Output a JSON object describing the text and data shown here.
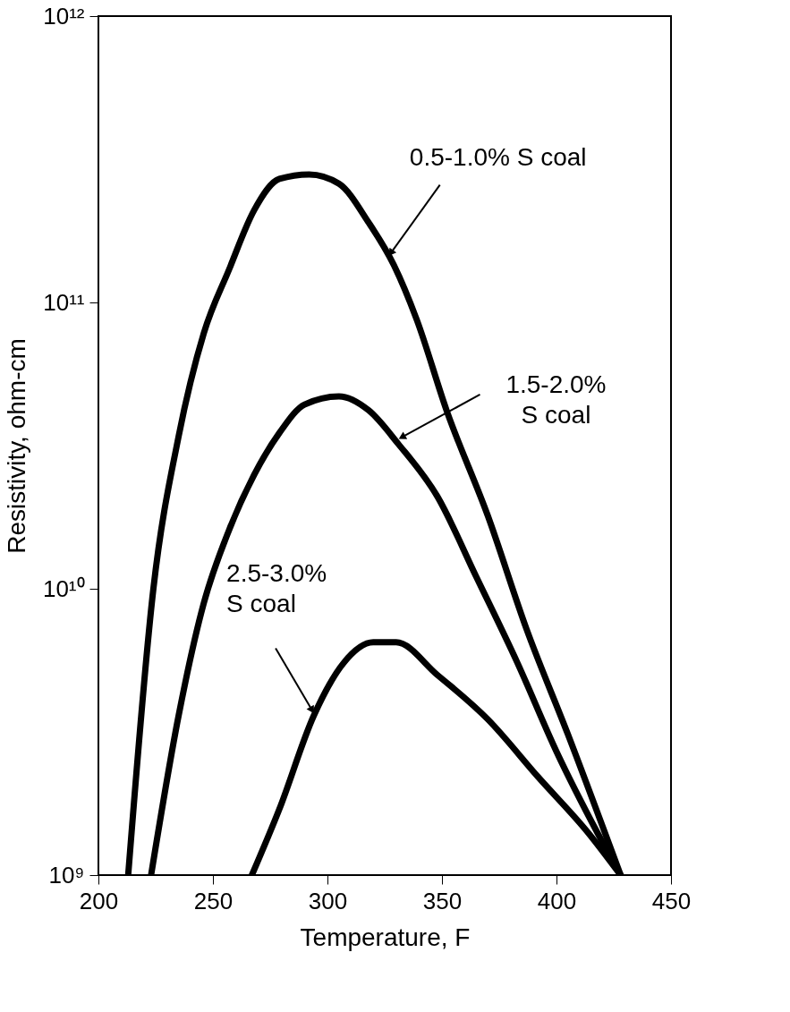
{
  "chart_data": {
    "type": "line",
    "xlabel": "Temperature, F",
    "ylabel": "Resistivity, ohm-cm",
    "log": "y",
    "grid": false,
    "marker": "none",
    "line_style": "solid",
    "xlim": [
      200,
      450
    ],
    "xticks": [
      200,
      250,
      300,
      350,
      400,
      450
    ],
    "ylim": [
      1000000000,
      1000000000000
    ],
    "yticks": [
      {
        "value": 1000000000,
        "label": "10⁹"
      },
      {
        "value": 10000000000,
        "label": "10¹⁰"
      },
      {
        "value": 100000000000,
        "label": "10¹¹"
      },
      {
        "value": 1000000000000,
        "label": "10¹²"
      }
    ],
    "series": [
      {
        "color": "#000000",
        "x": [
          213,
          224,
          235,
          246,
          257,
          268,
          279,
          292,
          305,
          318,
          329,
          339,
          352,
          370,
          387,
          405,
          428
        ],
        "values": [
          1000000000.0,
          10000000000.0,
          34000000000.0,
          78000000000.0,
          130000000000.0,
          210000000000.0,
          270000000000.0,
          280000000000.0,
          260000000000.0,
          190000000000.0,
          135000000000.0,
          87000000000.0,
          42000000000.0,
          18000000000.0,
          7200000000.0,
          3100000000.0,
          1000000000.0
        ]
      },
      {
        "color": "#000000",
        "x": [
          223,
          235,
          246,
          257,
          268,
          279,
          290,
          305,
          318,
          331,
          348,
          365,
          383,
          400,
          418,
          428
        ],
        "values": [
          1000000000.0,
          3600000000.0,
          8900000000.0,
          16000000000.0,
          25000000000.0,
          35000000000.0,
          44000000000.0,
          47000000000.0,
          42000000000.0,
          32000000000.0,
          21000000000.0,
          11000000000.0,
          5500000000.0,
          2700000000.0,
          1400000000.0,
          1000000000.0
        ]
      },
      {
        "color": "#000000",
        "x": [
          267,
          279,
          294,
          307,
          320,
          330,
          348,
          370,
          392,
          414,
          428
        ],
        "values": [
          1000000000.0,
          1700000000.0,
          3600000000.0,
          5500000000.0,
          6500000000.0,
          6500000000.0,
          5000000000.0,
          3500000000.0,
          2200000000.0,
          1400000000.0,
          1000000000.0
        ]
      }
    ],
    "annotations": [
      {
        "text": "0.5-1.0% S coal",
        "x": 328,
        "y": 150000000000
      },
      {
        "text": "1.5-2.0%\nS coal",
        "x": 333,
        "y": 34000000000
      },
      {
        "text": "2.5-3.0%\nS coal",
        "x": 293,
        "y": 3800000000
      }
    ]
  }
}
